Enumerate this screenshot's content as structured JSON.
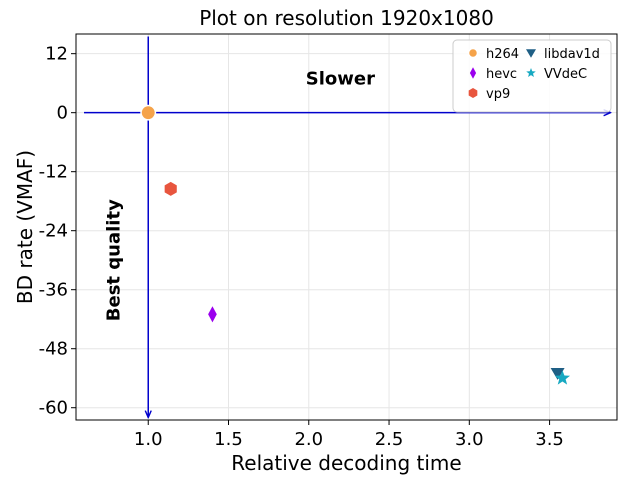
{
  "chart_data": {
    "type": "scatter",
    "title": "Plot on resolution 1920x1080",
    "xlabel": "Relative decoding time",
    "ylabel": "BD rate (VMAF)",
    "xlim": [
      0.55,
      3.92
    ],
    "ylim": [
      -62.5,
      16
    ],
    "xticks": [
      1.0,
      1.5,
      2.0,
      2.5,
      3.0,
      3.5
    ],
    "xtick_labels": [
      "1.0",
      "1.5",
      "2.0",
      "2.5",
      "3.0",
      "3.5"
    ],
    "yticks": [
      12,
      0,
      -12,
      -24,
      -36,
      -48,
      -60
    ],
    "ytick_labels": [
      "12",
      "0",
      "-12",
      "-24",
      "-36",
      "-48",
      "-60"
    ],
    "grid": true,
    "legend_position": "top-right",
    "legend_columns": 2,
    "series": [
      {
        "name": "h264",
        "x": [
          1.0
        ],
        "y": [
          0
        ],
        "color": "#f5a34a",
        "marker": "circle"
      },
      {
        "name": "hevc",
        "x": [
          1.4
        ],
        "y": [
          -41
        ],
        "color": "#9b00ee",
        "marker": "thin-diamond"
      },
      {
        "name": "vp9",
        "x": [
          1.14
        ],
        "y": [
          -15.5
        ],
        "color": "#e8553e",
        "marker": "hexagon"
      },
      {
        "name": "libdav1d",
        "x": [
          3.55
        ],
        "y": [
          -53
        ],
        "color": "#1f5f85",
        "marker": "triangle-down"
      },
      {
        "name": "VVdeC",
        "x": [
          3.58
        ],
        "y": [
          -54
        ],
        "color": "#17a9c2",
        "marker": "star"
      }
    ],
    "annotations": [
      {
        "text": "Slower",
        "x": 2.0,
        "y": 7
      },
      {
        "text": "Best quality",
        "x": 0.82,
        "y": -30
      }
    ],
    "arrows": [
      {
        "from": [
          0.6,
          0
        ],
        "to": [
          3.88,
          0
        ],
        "color": "#0000cc"
      },
      {
        "from": [
          1.0,
          15.5
        ],
        "to": [
          1.0,
          -62
        ],
        "color": "#0000cc"
      }
    ]
  }
}
